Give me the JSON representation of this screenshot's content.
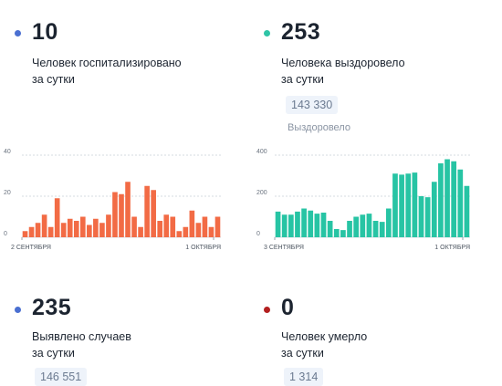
{
  "stats": [
    {
      "value": "10",
      "line1": "Человек госпитализировано",
      "line2": "за сутки",
      "dot_color": "#4a6fd1"
    },
    {
      "value": "253",
      "line1": "Человека выздоровело",
      "line2": "за сутки",
      "dot_color": "#2ec4a6",
      "total": "143 330",
      "total_label": "Выздоровело"
    },
    {
      "value": "235",
      "line1": "Выявлено случаев",
      "line2": "за сутки",
      "dot_color": "#4a6fd1",
      "total": "146 551"
    },
    {
      "value": "0",
      "line1": "Человек умерло",
      "line2": "за сутки",
      "dot_color": "#b32020",
      "total": "1 314"
    }
  ],
  "chart_data": [
    {
      "type": "bar",
      "color": "#f26b45",
      "ylim": [
        0,
        40
      ],
      "yticks": [
        0,
        20,
        40
      ],
      "x_start_label": "2 СЕНТЯБРЯ",
      "x_end_label": "1 ОКТЯБРЯ",
      "values": [
        3,
        5,
        7,
        11,
        5,
        19,
        7,
        9,
        8,
        10,
        6,
        9,
        7,
        11,
        22,
        21,
        27,
        10,
        5,
        25,
        23,
        8,
        11,
        10,
        3,
        5,
        13,
        7,
        10,
        5,
        10
      ]
    },
    {
      "type": "bar",
      "color": "#27c4a4",
      "ylim": [
        0,
        400
      ],
      "yticks": [
        0,
        200,
        400
      ],
      "x_start_label": "3 СЕНТЯБРЯ",
      "x_end_label": "1 ОКТЯБРЯ",
      "values": [
        125,
        110,
        110,
        125,
        140,
        130,
        115,
        120,
        80,
        40,
        35,
        80,
        100,
        110,
        115,
        80,
        75,
        140,
        310,
        305,
        310,
        315,
        200,
        195,
        270,
        360,
        380,
        370,
        330,
        250
      ]
    }
  ]
}
